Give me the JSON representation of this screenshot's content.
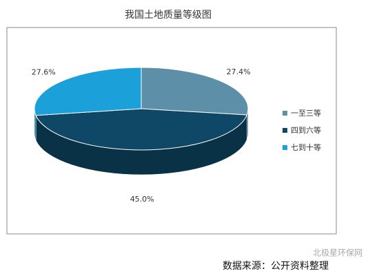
{
  "chart_data": {
    "type": "pie",
    "title": "我国土地质量等级图",
    "categories": [
      "一至三等",
      "四到六等",
      "七到十等"
    ],
    "values": [
      27.4,
      45.0,
      27.6
    ],
    "value_labels": [
      "27.4%",
      "45.0%",
      "27.6%"
    ],
    "colors": [
      "#5e8fa8",
      "#0e4866",
      "#1ba0d9"
    ],
    "legend": "right"
  },
  "source": "数据来源：公开资料整理",
  "watermark": "北极星环保网"
}
